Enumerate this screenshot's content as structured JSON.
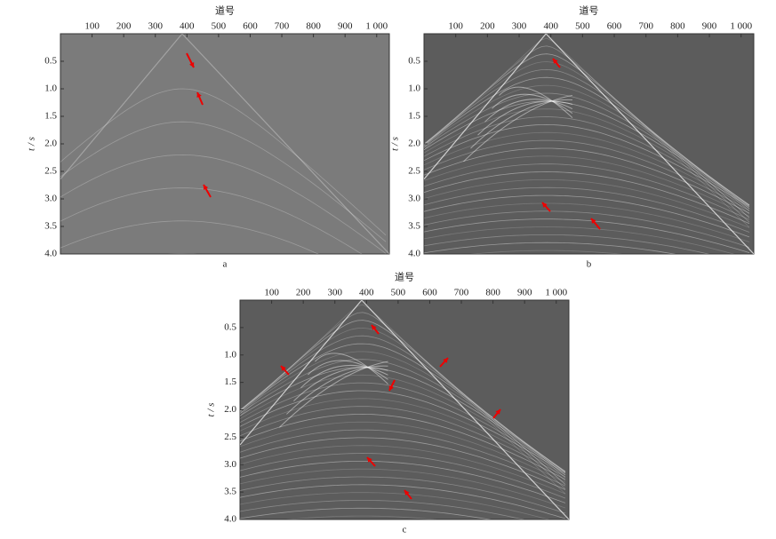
{
  "chart_data": [
    {
      "type": "image",
      "caption": "a",
      "xlabel": "道号",
      "ylabel": "t / s",
      "color": "#7b7b7b",
      "y_inverted": true,
      "xlim": [
        0,
        1040
      ],
      "ylim": [
        0,
        4
      ],
      "xticks": [
        100,
        200,
        300,
        400,
        500,
        600,
        700,
        800,
        900,
        {
          "value": 1000,
          "label": "1 000"
        }
      ],
      "yticks": [
        0.5,
        {
          "value": 1,
          "label": "1.0"
        },
        1.5,
        {
          "value": 2,
          "label": "2.0"
        },
        2.5,
        {
          "value": 3,
          "label": "3.0"
        },
        3.5,
        {
          "value": 4,
          "label": "4.0"
        }
      ]
    },
    {
      "type": "image",
      "caption": "b",
      "xlabel": "道号",
      "ylabel": "t / s",
      "color": "#5c5c5c",
      "y_inverted": true,
      "xlim": [
        0,
        1040
      ],
      "ylim": [
        0,
        4
      ],
      "xticks": [
        100,
        200,
        300,
        400,
        500,
        600,
        700,
        800,
        900,
        {
          "value": 1000,
          "label": "1 000"
        }
      ],
      "yticks": [
        0.5,
        {
          "value": 1,
          "label": "1.0"
        },
        1.5,
        {
          "value": 2,
          "label": "2.0"
        },
        2.5,
        {
          "value": 3,
          "label": "3.0"
        },
        3.5,
        {
          "value": 4,
          "label": "4.0"
        }
      ]
    },
    {
      "type": "image",
      "caption": "c",
      "xlabel": "道号",
      "ylabel": "t / s",
      "color": "#5c5c5c",
      "y_inverted": true,
      "xlim": [
        0,
        1040
      ],
      "ylim": [
        0,
        4
      ],
      "xticks": [
        100,
        200,
        300,
        400,
        500,
        600,
        700,
        800,
        900,
        {
          "value": 1000,
          "label": "1 000"
        }
      ],
      "yticks": [
        0.5,
        {
          "value": 1,
          "label": "1.0"
        },
        1.5,
        {
          "value": 2,
          "label": "2.0"
        },
        2.5,
        {
          "value": 3,
          "label": "3.0"
        },
        3.5,
        {
          "value": 4,
          "label": "4.0"
        }
      ]
    }
  ]
}
